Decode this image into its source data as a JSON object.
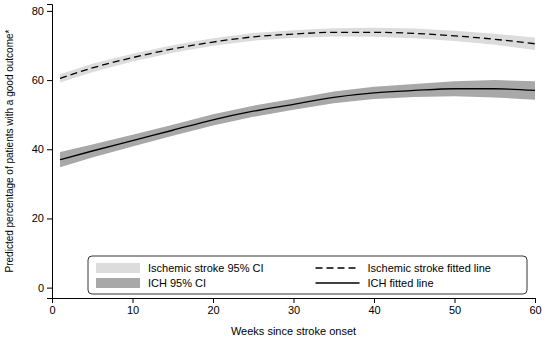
{
  "chart_data": {
    "type": "line",
    "x_label": "Weeks since stroke onset",
    "y_label": "Predicted percentage of patients with a good outcome*",
    "x": [
      1,
      5,
      10,
      15,
      20,
      25,
      30,
      35,
      40,
      45,
      50,
      55,
      60
    ],
    "xlim": [
      0,
      60
    ],
    "xticks": [
      0,
      10,
      20,
      30,
      40,
      50,
      60
    ],
    "ylim": [
      -3,
      82
    ],
    "yticks": [
      0,
      20,
      40,
      60,
      80
    ],
    "grid": false,
    "legend": "bottom",
    "series": [
      {
        "name": "Ischemic stroke 95% CI",
        "type": "area",
        "color": "#dcdcdc",
        "lower": [
          59.3,
          62.3,
          65.4,
          67.9,
          69.9,
          71.4,
          72.2,
          72.6,
          72.5,
          72.1,
          71.3,
          70.2,
          68.7
        ],
        "upper": [
          61.7,
          64.7,
          67.6,
          70.1,
          72.1,
          73.6,
          74.4,
          75.0,
          75.1,
          74.9,
          74.3,
          73.4,
          72.3
        ]
      },
      {
        "name": "ICH 95% CI",
        "type": "area",
        "color": "#a8a8a8",
        "lower": [
          34.8,
          37.6,
          40.8,
          43.9,
          46.9,
          49.4,
          51.4,
          53.3,
          54.5,
          55.1,
          55.3,
          55.0,
          54.3
        ],
        "upper": [
          39.2,
          41.4,
          44.2,
          47.1,
          50.1,
          52.6,
          54.6,
          56.7,
          58.1,
          58.9,
          59.7,
          60.0,
          59.7
        ]
      },
      {
        "name": "Ischemic stroke fitted line",
        "type": "line",
        "color": "#000000",
        "line_style": "dashed",
        "values": [
          60.5,
          63.5,
          66.5,
          69.0,
          71.0,
          72.5,
          73.3,
          73.8,
          73.8,
          73.5,
          72.8,
          71.8,
          70.5
        ]
      },
      {
        "name": "ICH fitted line",
        "type": "line",
        "color": "#000000",
        "line_style": "solid",
        "values": [
          37.0,
          39.5,
          42.5,
          45.5,
          48.5,
          51.0,
          53.0,
          55.0,
          56.3,
          57.0,
          57.5,
          57.5,
          57.0
        ]
      }
    ]
  }
}
